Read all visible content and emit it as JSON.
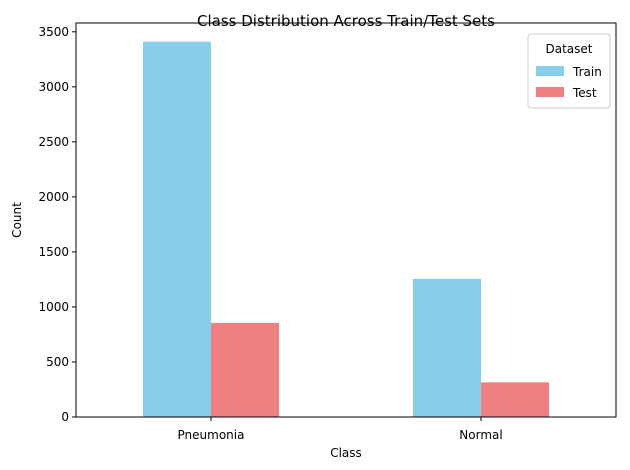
{
  "chart_data": {
    "type": "bar",
    "title": "Class Distribution Across Train/Test Sets",
    "xlabel": "Class",
    "ylabel": "Count",
    "categories": [
      "Pneumonia",
      "Normal"
    ],
    "series": [
      {
        "name": "Train",
        "values": [
          3410,
          1255
        ],
        "color": "#87CEEB"
      },
      {
        "name": "Test",
        "values": [
          855,
          315
        ],
        "color": "#F08080"
      }
    ],
    "ylim": [
      0,
      3580
    ],
    "yticks": [
      0,
      500,
      1000,
      1500,
      2000,
      2500,
      3000,
      3500
    ],
    "legend": {
      "title": "Dataset",
      "position": "top-right"
    },
    "grid": false
  }
}
